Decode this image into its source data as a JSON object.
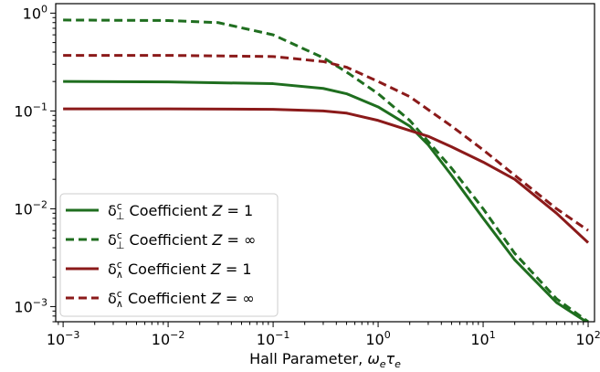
{
  "chart_data": {
    "type": "line",
    "xlabel": "Hall Parameter, ωₑτₑ",
    "ylabel": "",
    "xscale": "log",
    "yscale": "log",
    "xlim": [
      0.00085,
      115
    ],
    "ylim": [
      0.0007,
      1.25
    ],
    "x_ticks": [
      {
        "value": 0.001,
        "base": "10",
        "exp": "−3"
      },
      {
        "value": 0.01,
        "base": "10",
        "exp": "−2"
      },
      {
        "value": 0.1,
        "base": "10",
        "exp": "−1"
      },
      {
        "value": 1,
        "base": "10",
        "exp": "0"
      },
      {
        "value": 10,
        "base": "10",
        "exp": "1"
      },
      {
        "value": 100,
        "base": "10",
        "exp": "2"
      }
    ],
    "y_ticks": [
      {
        "value": 0.001,
        "base": "10",
        "exp": "−3"
      },
      {
        "value": 0.01,
        "base": "10",
        "exp": "−2"
      },
      {
        "value": 0.1,
        "base": "10",
        "exp": "−1"
      },
      {
        "value": 1,
        "base": "10",
        "exp": "0"
      }
    ],
    "grid": false,
    "legend_position": "lower-left",
    "series": [
      {
        "name": "δ⊥c Coefficient Z = 1",
        "color": "#1f6e1f",
        "dash": "solid",
        "x": [
          0.001,
          0.01,
          0.1,
          0.3,
          0.5,
          1,
          2,
          3,
          5,
          10,
          20,
          50,
          100
        ],
        "y": [
          0.2,
          0.198,
          0.19,
          0.17,
          0.15,
          0.11,
          0.07,
          0.045,
          0.022,
          0.008,
          0.003,
          0.0011,
          0.00068
        ]
      },
      {
        "name": "δ⊥c Coefficient Z = ∞",
        "color": "#1f6e1f",
        "dash": "dashed",
        "x": [
          0.001,
          0.01,
          0.03,
          0.1,
          0.3,
          0.5,
          1,
          2,
          5,
          10,
          20,
          50,
          100
        ],
        "y": [
          0.85,
          0.84,
          0.8,
          0.6,
          0.35,
          0.25,
          0.15,
          0.08,
          0.026,
          0.01,
          0.0035,
          0.0012,
          0.0007
        ]
      },
      {
        "name": "δ∧c Coefficient Z = 1",
        "color": "#8b1a1a",
        "dash": "solid",
        "x": [
          0.001,
          0.01,
          0.1,
          0.3,
          0.5,
          1,
          2,
          3,
          5,
          10,
          20,
          50,
          100
        ],
        "y": [
          0.105,
          0.105,
          0.104,
          0.1,
          0.095,
          0.08,
          0.063,
          0.055,
          0.043,
          0.03,
          0.02,
          0.009,
          0.0045
        ]
      },
      {
        "name": "δ∧c Coefficient Z = ∞",
        "color": "#8b1a1a",
        "dash": "dashed",
        "x": [
          0.001,
          0.01,
          0.1,
          0.3,
          0.5,
          1,
          2,
          5,
          10,
          20,
          50,
          100
        ],
        "y": [
          0.37,
          0.37,
          0.36,
          0.32,
          0.28,
          0.2,
          0.14,
          0.07,
          0.04,
          0.022,
          0.01,
          0.006
        ]
      }
    ],
    "legend": [
      {
        "symbol": "δ",
        "sup": "c",
        "sub": "⊥",
        "text": " Coefficient ",
        "z": "Z",
        "eq": " = 1"
      },
      {
        "symbol": "δ",
        "sup": "c",
        "sub": "⊥",
        "text": " Coefficient ",
        "z": "Z",
        "eq": " = ∞"
      },
      {
        "symbol": "δ",
        "sup": "c",
        "sub": "∧",
        "text": " Coefficient ",
        "z": "Z",
        "eq": " = 1"
      },
      {
        "symbol": "δ",
        "sup": "c",
        "sub": "∧",
        "text": " Coefficient ",
        "z": "Z",
        "eq": " = ∞"
      }
    ],
    "xlabel_parts": {
      "prefix": "Hall Parameter, ",
      "w": "ω",
      "w_sub": "e",
      "t": "τ",
      "t_sub": "e"
    }
  }
}
